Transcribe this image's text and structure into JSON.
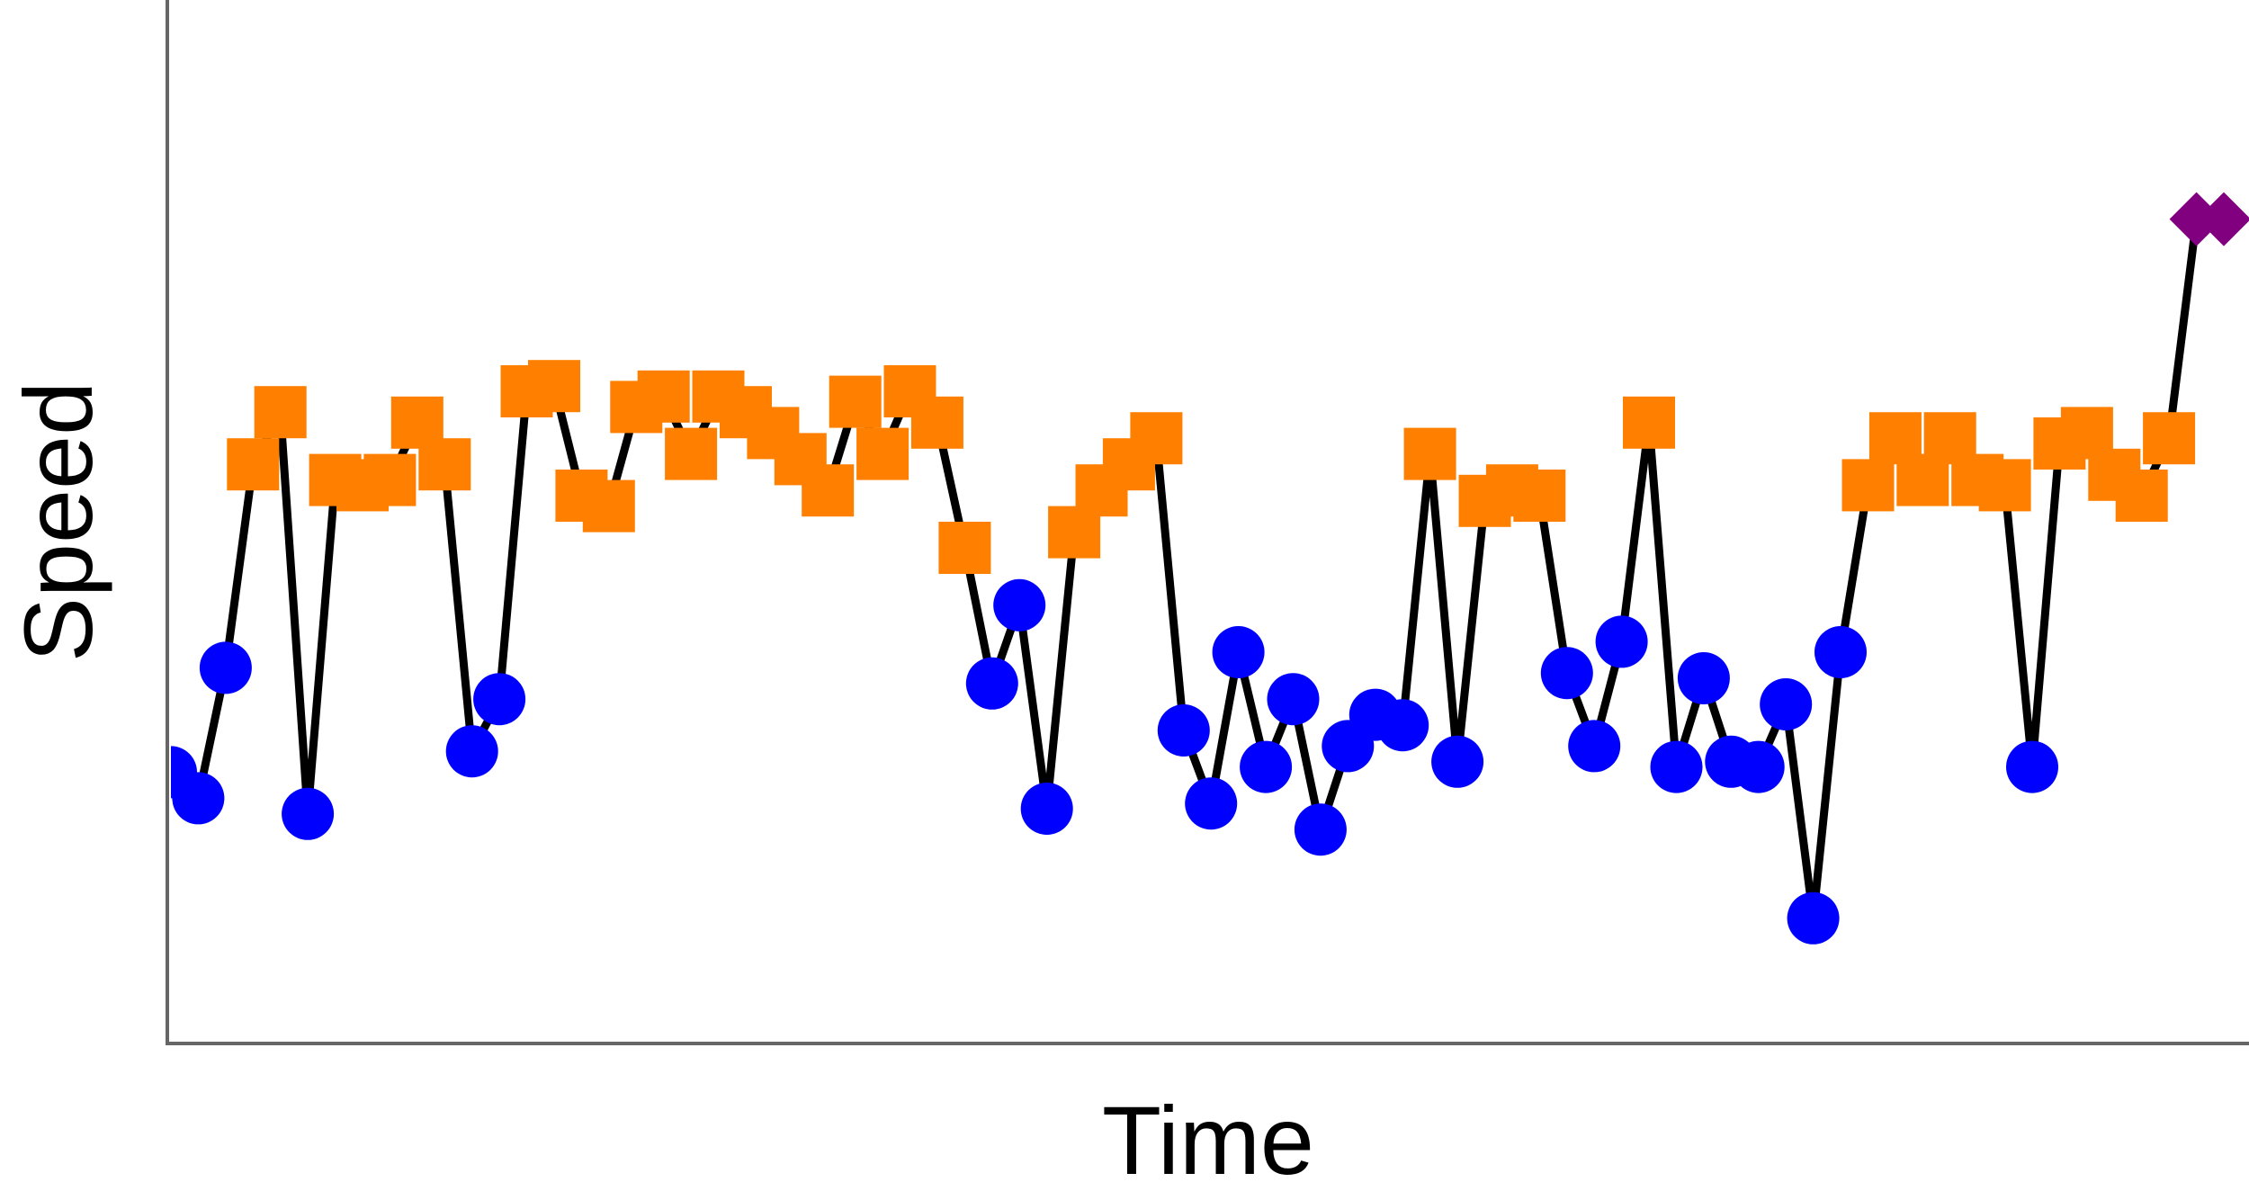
{
  "chart_data": {
    "type": "line",
    "xlabel": "Time",
    "ylabel": "Speed",
    "grid": false,
    "xlim": [
      0,
      75
    ],
    "ylim": [
      0,
      1
    ],
    "line_color": "#000000",
    "marker_styles": {
      "circle": {
        "shape": "circle",
        "color": "#0000ff"
      },
      "square": {
        "shape": "square",
        "color": "#ff8000"
      },
      "diamond": {
        "shape": "diamond",
        "color": "#800080"
      }
    },
    "series": [
      {
        "points": [
          [
            0,
            0.26,
            "circle"
          ],
          [
            1,
            0.235,
            "circle"
          ],
          [
            2,
            0.36,
            "circle"
          ],
          [
            3,
            0.555,
            "square"
          ],
          [
            4,
            0.605,
            "square"
          ],
          [
            5,
            0.22,
            "circle"
          ],
          [
            6,
            0.54,
            "square"
          ],
          [
            7,
            0.535,
            "square"
          ],
          [
            8,
            0.54,
            "square"
          ],
          [
            9,
            0.595,
            "square"
          ],
          [
            10,
            0.555,
            "square"
          ],
          [
            11,
            0.28,
            "circle"
          ],
          [
            12,
            0.33,
            "circle"
          ],
          [
            13,
            0.625,
            "square"
          ],
          [
            14,
            0.63,
            "square"
          ],
          [
            15,
            0.525,
            "square"
          ],
          [
            16,
            0.515,
            "square"
          ],
          [
            17,
            0.61,
            "square"
          ],
          [
            18,
            0.62,
            "square"
          ],
          [
            19,
            0.565,
            "square"
          ],
          [
            20,
            0.62,
            "square"
          ],
          [
            21,
            0.605,
            "square"
          ],
          [
            22,
            0.585,
            "square"
          ],
          [
            23,
            0.56,
            "square"
          ],
          [
            24,
            0.53,
            "square"
          ],
          [
            25,
            0.615,
            "square"
          ],
          [
            26,
            0.565,
            "square"
          ],
          [
            27,
            0.625,
            "square"
          ],
          [
            28,
            0.595,
            "square"
          ],
          [
            29,
            0.475,
            "square"
          ],
          [
            30,
            0.345,
            "circle"
          ],
          [
            31,
            0.42,
            "circle"
          ],
          [
            32,
            0.225,
            "circle"
          ],
          [
            33,
            0.49,
            "square"
          ],
          [
            34,
            0.53,
            "square"
          ],
          [
            35,
            0.555,
            "square"
          ],
          [
            36,
            0.58,
            "square"
          ],
          [
            37,
            0.3,
            "circle"
          ],
          [
            38,
            0.23,
            "circle"
          ],
          [
            39,
            0.375,
            "circle"
          ],
          [
            40,
            0.265,
            "circle"
          ],
          [
            41,
            0.33,
            "circle"
          ],
          [
            42,
            0.205,
            "circle"
          ],
          [
            43,
            0.285,
            "circle"
          ],
          [
            44,
            0.315,
            "circle"
          ],
          [
            45,
            0.305,
            "circle"
          ],
          [
            46,
            0.565,
            "square"
          ],
          [
            47,
            0.27,
            "circle"
          ],
          [
            48,
            0.52,
            "square"
          ],
          [
            49,
            0.53,
            "square"
          ],
          [
            50,
            0.525,
            "square"
          ],
          [
            51,
            0.355,
            "circle"
          ],
          [
            52,
            0.285,
            "circle"
          ],
          [
            53,
            0.385,
            "circle"
          ],
          [
            54,
            0.595,
            "square"
          ],
          [
            55,
            0.265,
            "circle"
          ],
          [
            56,
            0.35,
            "circle"
          ],
          [
            57,
            0.27,
            "circle"
          ],
          [
            58,
            0.265,
            "circle"
          ],
          [
            59,
            0.325,
            "circle"
          ],
          [
            60,
            0.12,
            "circle"
          ],
          [
            61,
            0.375,
            "circle"
          ],
          [
            62,
            0.535,
            "square"
          ],
          [
            63,
            0.58,
            "square"
          ],
          [
            64,
            0.54,
            "square"
          ],
          [
            65,
            0.58,
            "square"
          ],
          [
            66,
            0.54,
            "square"
          ],
          [
            67,
            0.535,
            "square"
          ],
          [
            68,
            0.265,
            "circle"
          ],
          [
            69,
            0.575,
            "square"
          ],
          [
            70,
            0.585,
            "square"
          ],
          [
            71,
            0.545,
            "square"
          ],
          [
            72,
            0.525,
            "square"
          ],
          [
            73,
            0.58,
            "square"
          ],
          [
            74,
            0.79,
            "diamond"
          ],
          [
            75,
            0.79,
            "diamond"
          ]
        ]
      }
    ]
  }
}
